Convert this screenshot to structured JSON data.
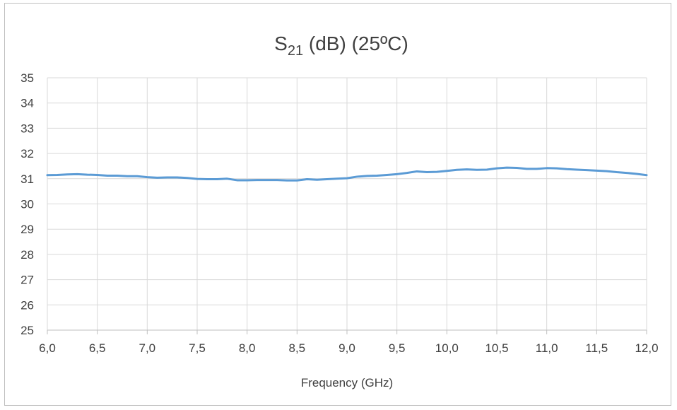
{
  "chart_data": {
    "type": "line",
    "title": {
      "main": "S",
      "subscript": "21",
      "rest": " (dB) (25ºC)"
    },
    "xlabel": "Frequency (GHz)",
    "ylabel": "",
    "xlim": [
      6.0,
      12.0
    ],
    "ylim": [
      25,
      35
    ],
    "x_ticks": [
      "6,0",
      "6,5",
      "7,0",
      "7,5",
      "8,0",
      "8,5",
      "9,0",
      "9,5",
      "10,0",
      "10,5",
      "11,0",
      "11,5",
      "12,0"
    ],
    "x_tick_values": [
      6.0,
      6.5,
      7.0,
      7.5,
      8.0,
      8.5,
      9.0,
      9.5,
      10.0,
      10.5,
      11.0,
      11.5,
      12.0
    ],
    "y_ticks": [
      "25",
      "26",
      "27",
      "28",
      "29",
      "30",
      "31",
      "32",
      "33",
      "34",
      "35"
    ],
    "y_tick_values": [
      25,
      26,
      27,
      28,
      29,
      30,
      31,
      32,
      33,
      34,
      35
    ],
    "grid": true,
    "legend": "none",
    "series": [
      {
        "color": "#5b9bd5",
        "x": [
          6.0,
          6.1,
          6.2,
          6.3,
          6.4,
          6.5,
          6.6,
          6.7,
          6.8,
          6.9,
          7.0,
          7.1,
          7.2,
          7.3,
          7.4,
          7.5,
          7.6,
          7.7,
          7.8,
          7.9,
          8.0,
          8.1,
          8.2,
          8.3,
          8.4,
          8.5,
          8.6,
          8.7,
          8.8,
          8.9,
          9.0,
          9.1,
          9.2,
          9.3,
          9.4,
          9.5,
          9.6,
          9.7,
          9.8,
          9.9,
          10.0,
          10.1,
          10.2,
          10.3,
          10.4,
          10.5,
          10.6,
          10.7,
          10.8,
          10.9,
          11.0,
          11.1,
          11.2,
          11.3,
          11.4,
          11.5,
          11.6,
          11.7,
          11.8,
          11.9,
          12.0
        ],
        "values": [
          31.14,
          31.15,
          31.17,
          31.18,
          31.16,
          31.15,
          31.12,
          31.12,
          31.1,
          31.1,
          31.06,
          31.04,
          31.05,
          31.05,
          31.03,
          30.99,
          30.98,
          30.98,
          31.0,
          30.94,
          30.94,
          30.95,
          30.95,
          30.95,
          30.93,
          30.93,
          30.98,
          30.96,
          30.98,
          31.0,
          31.02,
          31.08,
          31.11,
          31.12,
          31.15,
          31.18,
          31.23,
          31.29,
          31.26,
          31.27,
          31.31,
          31.35,
          31.37,
          31.35,
          31.36,
          31.41,
          31.44,
          31.43,
          31.39,
          31.39,
          31.42,
          31.41,
          31.38,
          31.36,
          31.34,
          31.32,
          31.3,
          31.26,
          31.23,
          31.19,
          31.14
        ]
      }
    ]
  }
}
